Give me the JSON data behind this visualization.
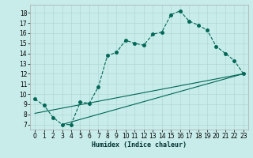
{
  "xlabel": "Humidex (Indice chaleur)",
  "bg_color": "#c8ecea",
  "grid_color": "#b0d8d4",
  "line_color": "#006655",
  "xlim": [
    -0.5,
    23.5
  ],
  "ylim": [
    6.5,
    18.8
  ],
  "yticks": [
    7,
    8,
    9,
    10,
    11,
    12,
    13,
    14,
    15,
    16,
    17,
    18
  ],
  "xticks": [
    0,
    1,
    2,
    3,
    4,
    5,
    6,
    7,
    8,
    9,
    10,
    11,
    12,
    13,
    14,
    15,
    16,
    17,
    18,
    19,
    20,
    21,
    22,
    23
  ],
  "line1_x": [
    0,
    1,
    2,
    3,
    4,
    5,
    6,
    7,
    8,
    9,
    10,
    11,
    12,
    13,
    14,
    15,
    16,
    17,
    18,
    19,
    20,
    21,
    22,
    23
  ],
  "line1_y": [
    9.5,
    8.9,
    7.7,
    7.0,
    7.0,
    9.2,
    9.1,
    10.7,
    13.8,
    14.1,
    15.3,
    15.0,
    14.8,
    15.9,
    16.1,
    17.8,
    18.2,
    17.2,
    16.8,
    16.3,
    14.7,
    14.0,
    13.3,
    12.0
  ],
  "line2_x": [
    0,
    23
  ],
  "line2_y": [
    8.1,
    12.0
  ],
  "line3_x": [
    3,
    23
  ],
  "line3_y": [
    7.0,
    12.0
  ]
}
